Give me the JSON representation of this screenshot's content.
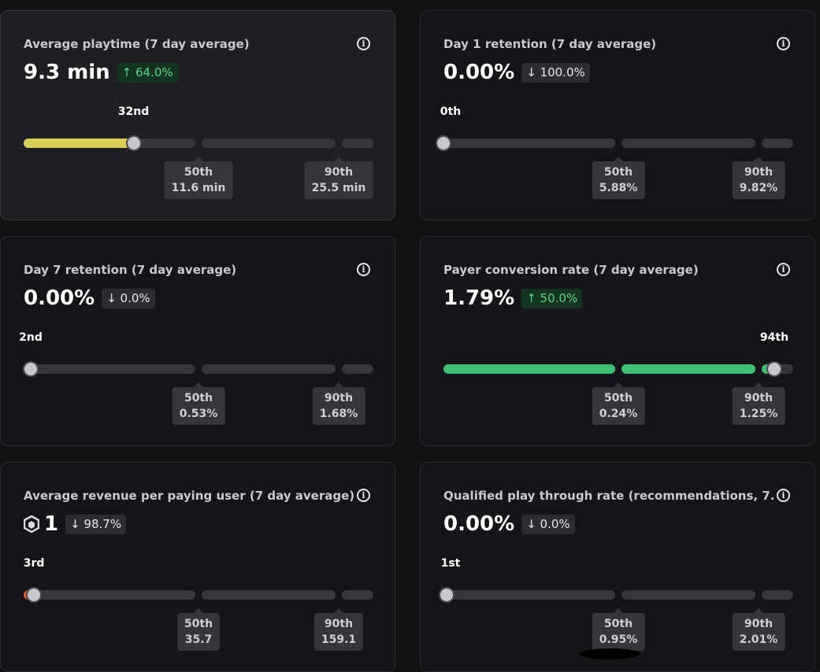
{
  "cards": [
    {
      "title": "Average playtime (7 day average)",
      "value": "9.3 min",
      "change": "↑ 64.0%",
      "change_direction": "up",
      "rank": "32nd",
      "percentile": 0.32,
      "p50_label": "50th",
      "p50_value": "11.6 min",
      "p90_label": "90th",
      "p90_value": "25.5 min",
      "fill_color": "#d9cf5a",
      "active": true
    },
    {
      "title": "Day 1 retention (7 day average)",
      "value": "0.00%",
      "change": "↓ 100.0%",
      "change_direction": "down",
      "rank": "0th",
      "percentile": 0.0,
      "p50_label": "50th",
      "p50_value": "5.88%",
      "p90_label": "90th",
      "p90_value": "9.82%",
      "fill_color": "#d9cf5a"
    },
    {
      "title": "Day 7 retention (7 day average)",
      "value": "0.00%",
      "change": "↓ 0.0%",
      "change_direction": "down",
      "rank": "2nd",
      "percentile": 0.02,
      "p50_label": "50th",
      "p50_value": "0.53%",
      "p90_label": "90th",
      "p90_value": "1.68%",
      "fill_color": "#d9cf5a"
    },
    {
      "title": "Payer conversion rate (7 day average)",
      "value": "1.79%",
      "change": "↑ 50.0%",
      "change_direction": "up",
      "rank": "94th",
      "percentile": 0.94,
      "p50_label": "50th",
      "p50_value": "0.24%",
      "p90_label": "90th",
      "p90_value": "1.25%",
      "fill_color": "#3fbf72"
    },
    {
      "title": "Average revenue per paying user (7 day average)",
      "value": "1",
      "value_icon": "robux-icon",
      "change": "↓ 98.7%",
      "change_direction": "down",
      "rank": "3rd",
      "percentile": 0.03,
      "p50_label": "50th",
      "p50_value": "35.7",
      "p90_label": "90th",
      "p90_value": "159.1",
      "fill_color": "#e0582e"
    },
    {
      "title": "Qualified play through rate (recommendations, 7...",
      "value": "0.00%",
      "change": "↓ 0.0%",
      "change_direction": "down",
      "rank": "1st",
      "percentile": 0.01,
      "p50_label": "50th",
      "p50_value": "0.95%",
      "p90_label": "90th",
      "p90_value": "2.01%",
      "fill_color": "#d9cf5a"
    }
  ],
  "colors": {
    "background": "#111214",
    "card_background": "#141518",
    "track": "#35373c",
    "up_badge_text": "#5fd28a",
    "down_badge_text": "#e8e8ea"
  }
}
